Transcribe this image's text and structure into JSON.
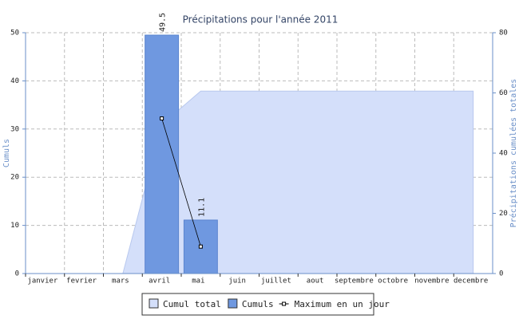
{
  "chart_data": {
    "type": "combo",
    "title": "Précipitations pour l'année 2011",
    "y_label": "Cumuls",
    "y2_label": "Précipitations cumulées totales",
    "categories": [
      "janvier",
      "fevrier",
      "mars",
      "avril",
      "mai",
      "juin",
      "juillet",
      "aout",
      "septembre",
      "octobre",
      "novembre",
      "decembre"
    ],
    "ylim": [
      0,
      50
    ],
    "yticks": [
      0,
      10,
      20,
      30,
      40,
      50
    ],
    "y2lim": [
      0,
      80
    ],
    "y2ticks": [
      0,
      20,
      40,
      60,
      80
    ],
    "grid": true,
    "series": [
      {
        "name": "Cumul total",
        "type": "area",
        "axis": "y2",
        "color": "#d4dffa",
        "values": [
          0,
          0,
          0,
          49.5,
          60.6,
          60.6,
          60.6,
          60.6,
          60.6,
          60.6,
          60.6,
          60.6
        ]
      },
      {
        "name": "Cumuls",
        "type": "bar",
        "color": "#6f98e0",
        "values": [
          null,
          null,
          null,
          49.5,
          11.1,
          null,
          null,
          null,
          null,
          null,
          null,
          null
        ]
      },
      {
        "name": "Maximum en un jour",
        "type": "line",
        "color": "#000000",
        "values": [
          null,
          null,
          null,
          32.2,
          5.6,
          null,
          null,
          null,
          null,
          null,
          null,
          null
        ]
      }
    ]
  }
}
